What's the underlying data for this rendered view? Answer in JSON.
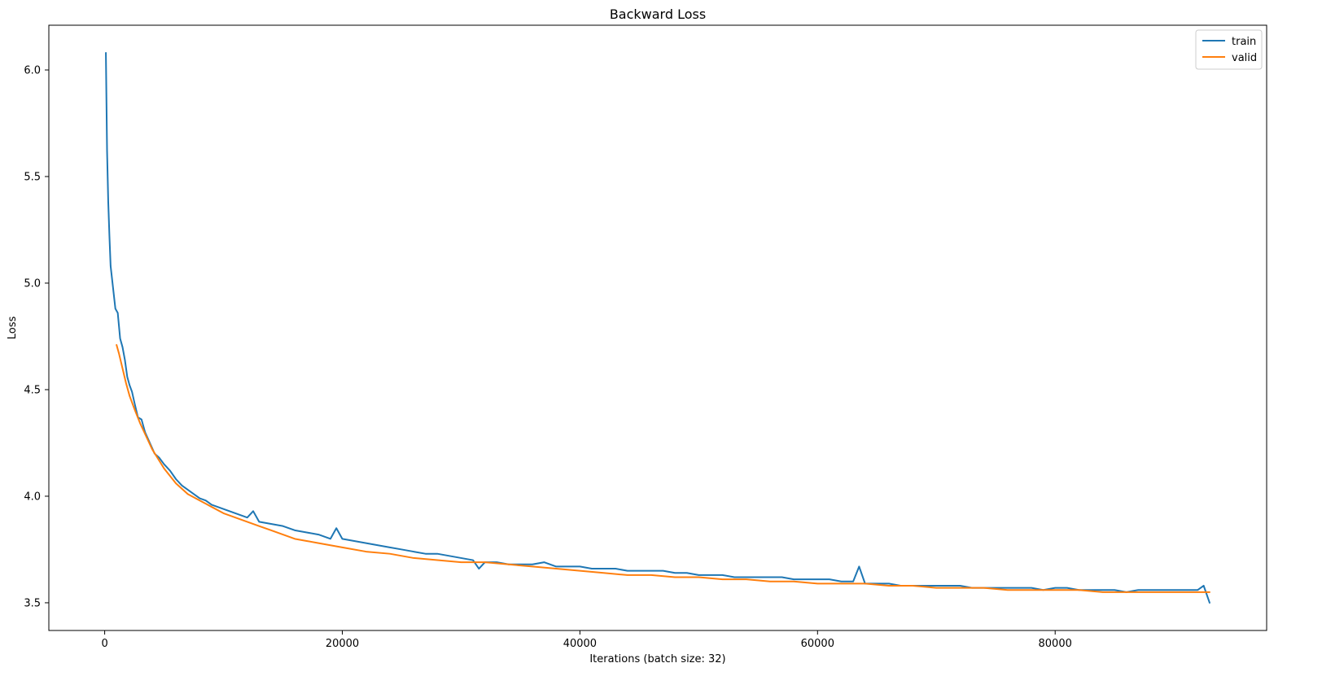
{
  "chart_data": {
    "type": "line",
    "title": "Backward Loss",
    "xlabel": "Iterations (batch size: 32)",
    "ylabel": "Loss",
    "xlim": [
      -4700,
      97800
    ],
    "ylim": [
      3.37,
      6.21
    ],
    "x_ticks": [
      0,
      20000,
      40000,
      60000,
      80000
    ],
    "x_tick_labels": [
      "0",
      "20000",
      "40000",
      "60000",
      "80000"
    ],
    "y_ticks": [
      3.5,
      4.0,
      4.5,
      5.0,
      5.5,
      6.0
    ],
    "y_tick_labels": [
      "3.5",
      "4.0",
      "4.5",
      "5.0",
      "5.5",
      "6.0"
    ],
    "grid": false,
    "legend_position": "top-right",
    "series": [
      {
        "name": "train",
        "color": "#1f77b4",
        "points": [
          [
            100,
            6.08
          ],
          [
            200,
            5.62
          ],
          [
            300,
            5.38
          ],
          [
            400,
            5.22
          ],
          [
            500,
            5.08
          ],
          [
            700,
            4.98
          ],
          [
            900,
            4.88
          ],
          [
            1100,
            4.86
          ],
          [
            1300,
            4.74
          ],
          [
            1500,
            4.7
          ],
          [
            1700,
            4.64
          ],
          [
            1900,
            4.56
          ],
          [
            2100,
            4.52
          ],
          [
            2300,
            4.49
          ],
          [
            2500,
            4.44
          ],
          [
            2800,
            4.37
          ],
          [
            3100,
            4.36
          ],
          [
            3400,
            4.3
          ],
          [
            3800,
            4.25
          ],
          [
            4200,
            4.2
          ],
          [
            4600,
            4.18
          ],
          [
            5000,
            4.15
          ],
          [
            5500,
            4.12
          ],
          [
            6000,
            4.08
          ],
          [
            6500,
            4.05
          ],
          [
            7000,
            4.03
          ],
          [
            7500,
            4.01
          ],
          [
            8000,
            3.99
          ],
          [
            8500,
            3.98
          ],
          [
            9000,
            3.96
          ],
          [
            9500,
            3.95
          ],
          [
            10000,
            3.94
          ],
          [
            11000,
            3.92
          ],
          [
            12000,
            3.9
          ],
          [
            12500,
            3.93
          ],
          [
            13000,
            3.88
          ],
          [
            14000,
            3.87
          ],
          [
            15000,
            3.86
          ],
          [
            16000,
            3.84
          ],
          [
            17000,
            3.83
          ],
          [
            18000,
            3.82
          ],
          [
            19000,
            3.8
          ],
          [
            19500,
            3.85
          ],
          [
            20000,
            3.8
          ],
          [
            21000,
            3.79
          ],
          [
            22000,
            3.78
          ],
          [
            23000,
            3.77
          ],
          [
            24000,
            3.76
          ],
          [
            25000,
            3.75
          ],
          [
            26000,
            3.74
          ],
          [
            27000,
            3.73
          ],
          [
            28000,
            3.73
          ],
          [
            29000,
            3.72
          ],
          [
            30000,
            3.71
          ],
          [
            31000,
            3.7
          ],
          [
            31500,
            3.66
          ],
          [
            32000,
            3.69
          ],
          [
            33000,
            3.69
          ],
          [
            34000,
            3.68
          ],
          [
            35000,
            3.68
          ],
          [
            36000,
            3.68
          ],
          [
            37000,
            3.69
          ],
          [
            38000,
            3.67
          ],
          [
            39000,
            3.67
          ],
          [
            40000,
            3.67
          ],
          [
            41000,
            3.66
          ],
          [
            42000,
            3.66
          ],
          [
            43000,
            3.66
          ],
          [
            44000,
            3.65
          ],
          [
            45000,
            3.65
          ],
          [
            46000,
            3.65
          ],
          [
            47000,
            3.65
          ],
          [
            48000,
            3.64
          ],
          [
            49000,
            3.64
          ],
          [
            50000,
            3.63
          ],
          [
            51000,
            3.63
          ],
          [
            52000,
            3.63
          ],
          [
            53000,
            3.62
          ],
          [
            54000,
            3.62
          ],
          [
            55000,
            3.62
          ],
          [
            56000,
            3.62
          ],
          [
            57000,
            3.62
          ],
          [
            58000,
            3.61
          ],
          [
            59000,
            3.61
          ],
          [
            60000,
            3.61
          ],
          [
            61000,
            3.61
          ],
          [
            62000,
            3.6
          ],
          [
            63000,
            3.6
          ],
          [
            63500,
            3.67
          ],
          [
            64000,
            3.59
          ],
          [
            65000,
            3.59
          ],
          [
            66000,
            3.59
          ],
          [
            67000,
            3.58
          ],
          [
            68000,
            3.58
          ],
          [
            69000,
            3.58
          ],
          [
            70000,
            3.58
          ],
          [
            71000,
            3.58
          ],
          [
            72000,
            3.58
          ],
          [
            73000,
            3.57
          ],
          [
            74000,
            3.57
          ],
          [
            75000,
            3.57
          ],
          [
            76000,
            3.57
          ],
          [
            77000,
            3.57
          ],
          [
            78000,
            3.57
          ],
          [
            79000,
            3.56
          ],
          [
            80000,
            3.57
          ],
          [
            81000,
            3.57
          ],
          [
            82000,
            3.56
          ],
          [
            83000,
            3.56
          ],
          [
            84000,
            3.56
          ],
          [
            85000,
            3.56
          ],
          [
            86000,
            3.55
          ],
          [
            87000,
            3.56
          ],
          [
            88000,
            3.56
          ],
          [
            89000,
            3.56
          ],
          [
            90000,
            3.56
          ],
          [
            91000,
            3.56
          ],
          [
            92000,
            3.56
          ],
          [
            92500,
            3.58
          ],
          [
            93000,
            3.5
          ]
        ]
      },
      {
        "name": "valid",
        "color": "#ff7f0e",
        "points": [
          [
            1000,
            4.71
          ],
          [
            1200,
            4.67
          ],
          [
            1500,
            4.6
          ],
          [
            1800,
            4.53
          ],
          [
            2100,
            4.47
          ],
          [
            2500,
            4.41
          ],
          [
            3000,
            4.34
          ],
          [
            3500,
            4.28
          ],
          [
            4000,
            4.22
          ],
          [
            5000,
            4.13
          ],
          [
            6000,
            4.06
          ],
          [
            7000,
            4.01
          ],
          [
            8000,
            3.98
          ],
          [
            9000,
            3.95
          ],
          [
            10000,
            3.92
          ],
          [
            11000,
            3.9
          ],
          [
            12000,
            3.88
          ],
          [
            13000,
            3.86
          ],
          [
            14000,
            3.84
          ],
          [
            15000,
            3.82
          ],
          [
            16000,
            3.8
          ],
          [
            17000,
            3.79
          ],
          [
            18000,
            3.78
          ],
          [
            19000,
            3.77
          ],
          [
            20000,
            3.76
          ],
          [
            22000,
            3.74
          ],
          [
            24000,
            3.73
          ],
          [
            26000,
            3.71
          ],
          [
            28000,
            3.7
          ],
          [
            30000,
            3.69
          ],
          [
            32000,
            3.69
          ],
          [
            34000,
            3.68
          ],
          [
            36000,
            3.67
          ],
          [
            38000,
            3.66
          ],
          [
            40000,
            3.65
          ],
          [
            42000,
            3.64
          ],
          [
            44000,
            3.63
          ],
          [
            46000,
            3.63
          ],
          [
            48000,
            3.62
          ],
          [
            50000,
            3.62
          ],
          [
            52000,
            3.61
          ],
          [
            54000,
            3.61
          ],
          [
            56000,
            3.6
          ],
          [
            58000,
            3.6
          ],
          [
            60000,
            3.59
          ],
          [
            62000,
            3.59
          ],
          [
            64000,
            3.59
          ],
          [
            66000,
            3.58
          ],
          [
            68000,
            3.58
          ],
          [
            70000,
            3.57
          ],
          [
            72000,
            3.57
          ],
          [
            74000,
            3.57
          ],
          [
            76000,
            3.56
          ],
          [
            78000,
            3.56
          ],
          [
            80000,
            3.56
          ],
          [
            82000,
            3.56
          ],
          [
            84000,
            3.55
          ],
          [
            86000,
            3.55
          ],
          [
            88000,
            3.55
          ],
          [
            90000,
            3.55
          ],
          [
            92000,
            3.55
          ],
          [
            93000,
            3.55
          ]
        ]
      }
    ]
  }
}
